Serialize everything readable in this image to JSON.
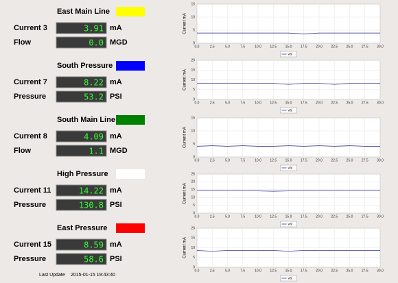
{
  "panels": [
    {
      "title": "East Main Line",
      "color": "#ffff00",
      "rows": [
        {
          "label": "Current 3",
          "value": "3.91",
          "unit": "mA"
        },
        {
          "label": "Flow",
          "value": "0.0",
          "unit": "MGD"
        }
      ]
    },
    {
      "title": "South Pressure",
      "color": "#0000ff",
      "rows": [
        {
          "label": "Current 7",
          "value": "8.22",
          "unit": "mA"
        },
        {
          "label": "Pressure",
          "value": "53.2",
          "unit": "PSI"
        }
      ]
    },
    {
      "title": "South Main Line",
      "color": "#008000",
      "rows": [
        {
          "label": "Current 8",
          "value": "4.09",
          "unit": "mA"
        },
        {
          "label": "Flow",
          "value": "1.1",
          "unit": "MGD"
        }
      ]
    },
    {
      "title": "High Pressure",
      "color": "#ffffff",
      "rows": [
        {
          "label": "Current 11",
          "value": "14.22",
          "unit": "mA"
        },
        {
          "label": "Pressure",
          "value": "130.8",
          "unit": "PSI"
        }
      ]
    },
    {
      "title": "East Pressure",
      "color": "#ff0000",
      "rows": [
        {
          "label": "Current 15",
          "value": "8.59",
          "unit": "mA"
        },
        {
          "label": "Pressure",
          "value": "58.6",
          "unit": "PSI"
        }
      ]
    }
  ],
  "footer": {
    "label": "Last Update",
    "timestamp": "2015-01-15 19:43:40"
  },
  "chart_data": [
    {
      "type": "line",
      "y_label": "Current mA",
      "x": [
        0,
        2.5,
        5,
        7.5,
        10,
        12.5,
        15,
        17.5,
        20,
        22.5,
        25,
        27.5,
        30
      ],
      "series": [
        {
          "name": "val",
          "color": "#333399",
          "values": [
            3.9,
            3.9,
            3.9,
            3.9,
            3.9,
            3.9,
            3.9,
            3.5,
            3.9,
            3.9,
            3.9,
            3.9,
            3.9
          ]
        }
      ],
      "ylim": [
        0,
        15
      ],
      "yticks": [
        0,
        5,
        10,
        15
      ],
      "xlim": [
        0,
        30
      ],
      "xticks": [
        {
          "value": 0,
          "label": "0.0"
        },
        2.5,
        {
          "value": 5,
          "label": "5.0"
        },
        7.5,
        {
          "value": 10,
          "label": "10.0"
        },
        12.5,
        {
          "value": 15,
          "label": "15.0"
        },
        17.5,
        {
          "value": 20,
          "label": "20.0"
        },
        22.5,
        {
          "value": 25,
          "label": "25.0"
        },
        27.5,
        {
          "value": 30,
          "label": "30.0"
        }
      ],
      "grid": true
    },
    {
      "type": "line",
      "y_label": "Current mA",
      "x": [
        0,
        2.5,
        5,
        7.5,
        10,
        12.5,
        15,
        17.5,
        20,
        22.5,
        25,
        27.5,
        30
      ],
      "series": [
        {
          "name": "val",
          "color": "#333399",
          "values": [
            8.2,
            8.2,
            8.2,
            8.2,
            8.2,
            8.2,
            7.7,
            8.2,
            8.2,
            7.7,
            8.2,
            8.2,
            8.2
          ]
        }
      ],
      "ylim": [
        0,
        20
      ],
      "yticks": [
        0,
        5,
        10,
        15,
        20
      ],
      "xlim": [
        0,
        30
      ],
      "xticks": [
        {
          "value": 0,
          "label": "0.0"
        },
        2.5,
        {
          "value": 5,
          "label": "5.0"
        },
        7.5,
        {
          "value": 10,
          "label": "10.0"
        },
        12.5,
        {
          "value": 15,
          "label": "15.0"
        },
        17.5,
        {
          "value": 20,
          "label": "20.0"
        },
        22.5,
        {
          "value": 25,
          "label": "25.0"
        },
        27.5,
        {
          "value": 30,
          "label": "30.0"
        }
      ],
      "grid": true
    },
    {
      "type": "line",
      "y_label": "Current mA",
      "x": [
        0,
        2.5,
        5,
        7.5,
        10,
        12.5,
        15,
        17.5,
        20,
        22.5,
        25,
        27.5,
        30
      ],
      "series": [
        {
          "name": "val",
          "color": "#333399",
          "values": [
            4.1,
            4.3,
            4.1,
            4.3,
            4.1,
            4.1,
            4.3,
            4.1,
            4.3,
            4.1,
            4.3,
            4.1,
            4.1
          ]
        }
      ],
      "ylim": [
        0,
        15
      ],
      "yticks": [
        0,
        5,
        10,
        15
      ],
      "xlim": [
        0,
        30
      ],
      "xticks": [
        {
          "value": 0,
          "label": "0.0"
        },
        2.5,
        {
          "value": 5,
          "label": "5.0"
        },
        7.5,
        {
          "value": 10,
          "label": "10.0"
        },
        12.5,
        {
          "value": 15,
          "label": "15.0"
        },
        17.5,
        {
          "value": 20,
          "label": "20.0"
        },
        22.5,
        {
          "value": 25,
          "label": "25.0"
        },
        27.5,
        {
          "value": 30,
          "label": "30.0"
        }
      ],
      "grid": true
    },
    {
      "type": "line",
      "y_label": "Current mA",
      "x": [
        0,
        2.5,
        5,
        7.5,
        10,
        12.5,
        15,
        17.5,
        20,
        22.5,
        25,
        27.5,
        30
      ],
      "series": [
        {
          "name": "val",
          "color": "#333399",
          "values": [
            14.2,
            14.2,
            14.2,
            14.2,
            14.2,
            14.0,
            14.2,
            14.2,
            14.2,
            14.2,
            14.2,
            14.2,
            14.2
          ]
        }
      ],
      "ylim": [
        0,
        25
      ],
      "yticks": [
        0,
        5,
        10,
        15,
        20,
        25
      ],
      "xlim": [
        0,
        30
      ],
      "xticks": [
        {
          "value": 0,
          "label": "0.0"
        },
        2.5,
        {
          "value": 5,
          "label": "5.0"
        },
        7.5,
        {
          "value": 10,
          "label": "10.0"
        },
        12.5,
        {
          "value": 15,
          "label": "15.0"
        },
        17.5,
        {
          "value": 20,
          "label": "20.0"
        },
        22.5,
        {
          "value": 25,
          "label": "25.0"
        },
        27.5,
        {
          "value": 30,
          "label": "30.0"
        }
      ],
      "grid": true
    },
    {
      "type": "line",
      "y_label": "Current mA",
      "x": [
        0,
        2.5,
        5,
        7.5,
        10,
        12.5,
        15,
        17.5,
        20,
        22.5,
        25,
        27.5,
        30
      ],
      "series": [
        {
          "name": "val",
          "color": "#333399",
          "values": [
            8.6,
            8.2,
            8.6,
            8.6,
            8.6,
            8.6,
            8.2,
            8.6,
            8.6,
            8.6,
            8.6,
            8.6,
            8.6
          ]
        }
      ],
      "ylim": [
        0,
        20
      ],
      "yticks": [
        0,
        5,
        10,
        15,
        20
      ],
      "xlim": [
        0,
        30
      ],
      "xticks": [
        {
          "value": 0,
          "label": "0.0"
        },
        2.5,
        {
          "value": 5,
          "label": "5.0"
        },
        7.5,
        {
          "value": 10,
          "label": "10.0"
        },
        12.5,
        {
          "value": 15,
          "label": "15.0"
        },
        17.5,
        {
          "value": 20,
          "label": "20.0"
        },
        22.5,
        {
          "value": 25,
          "label": "25.0"
        },
        27.5,
        {
          "value": 30,
          "label": "30.0"
        }
      ],
      "grid": true
    }
  ]
}
